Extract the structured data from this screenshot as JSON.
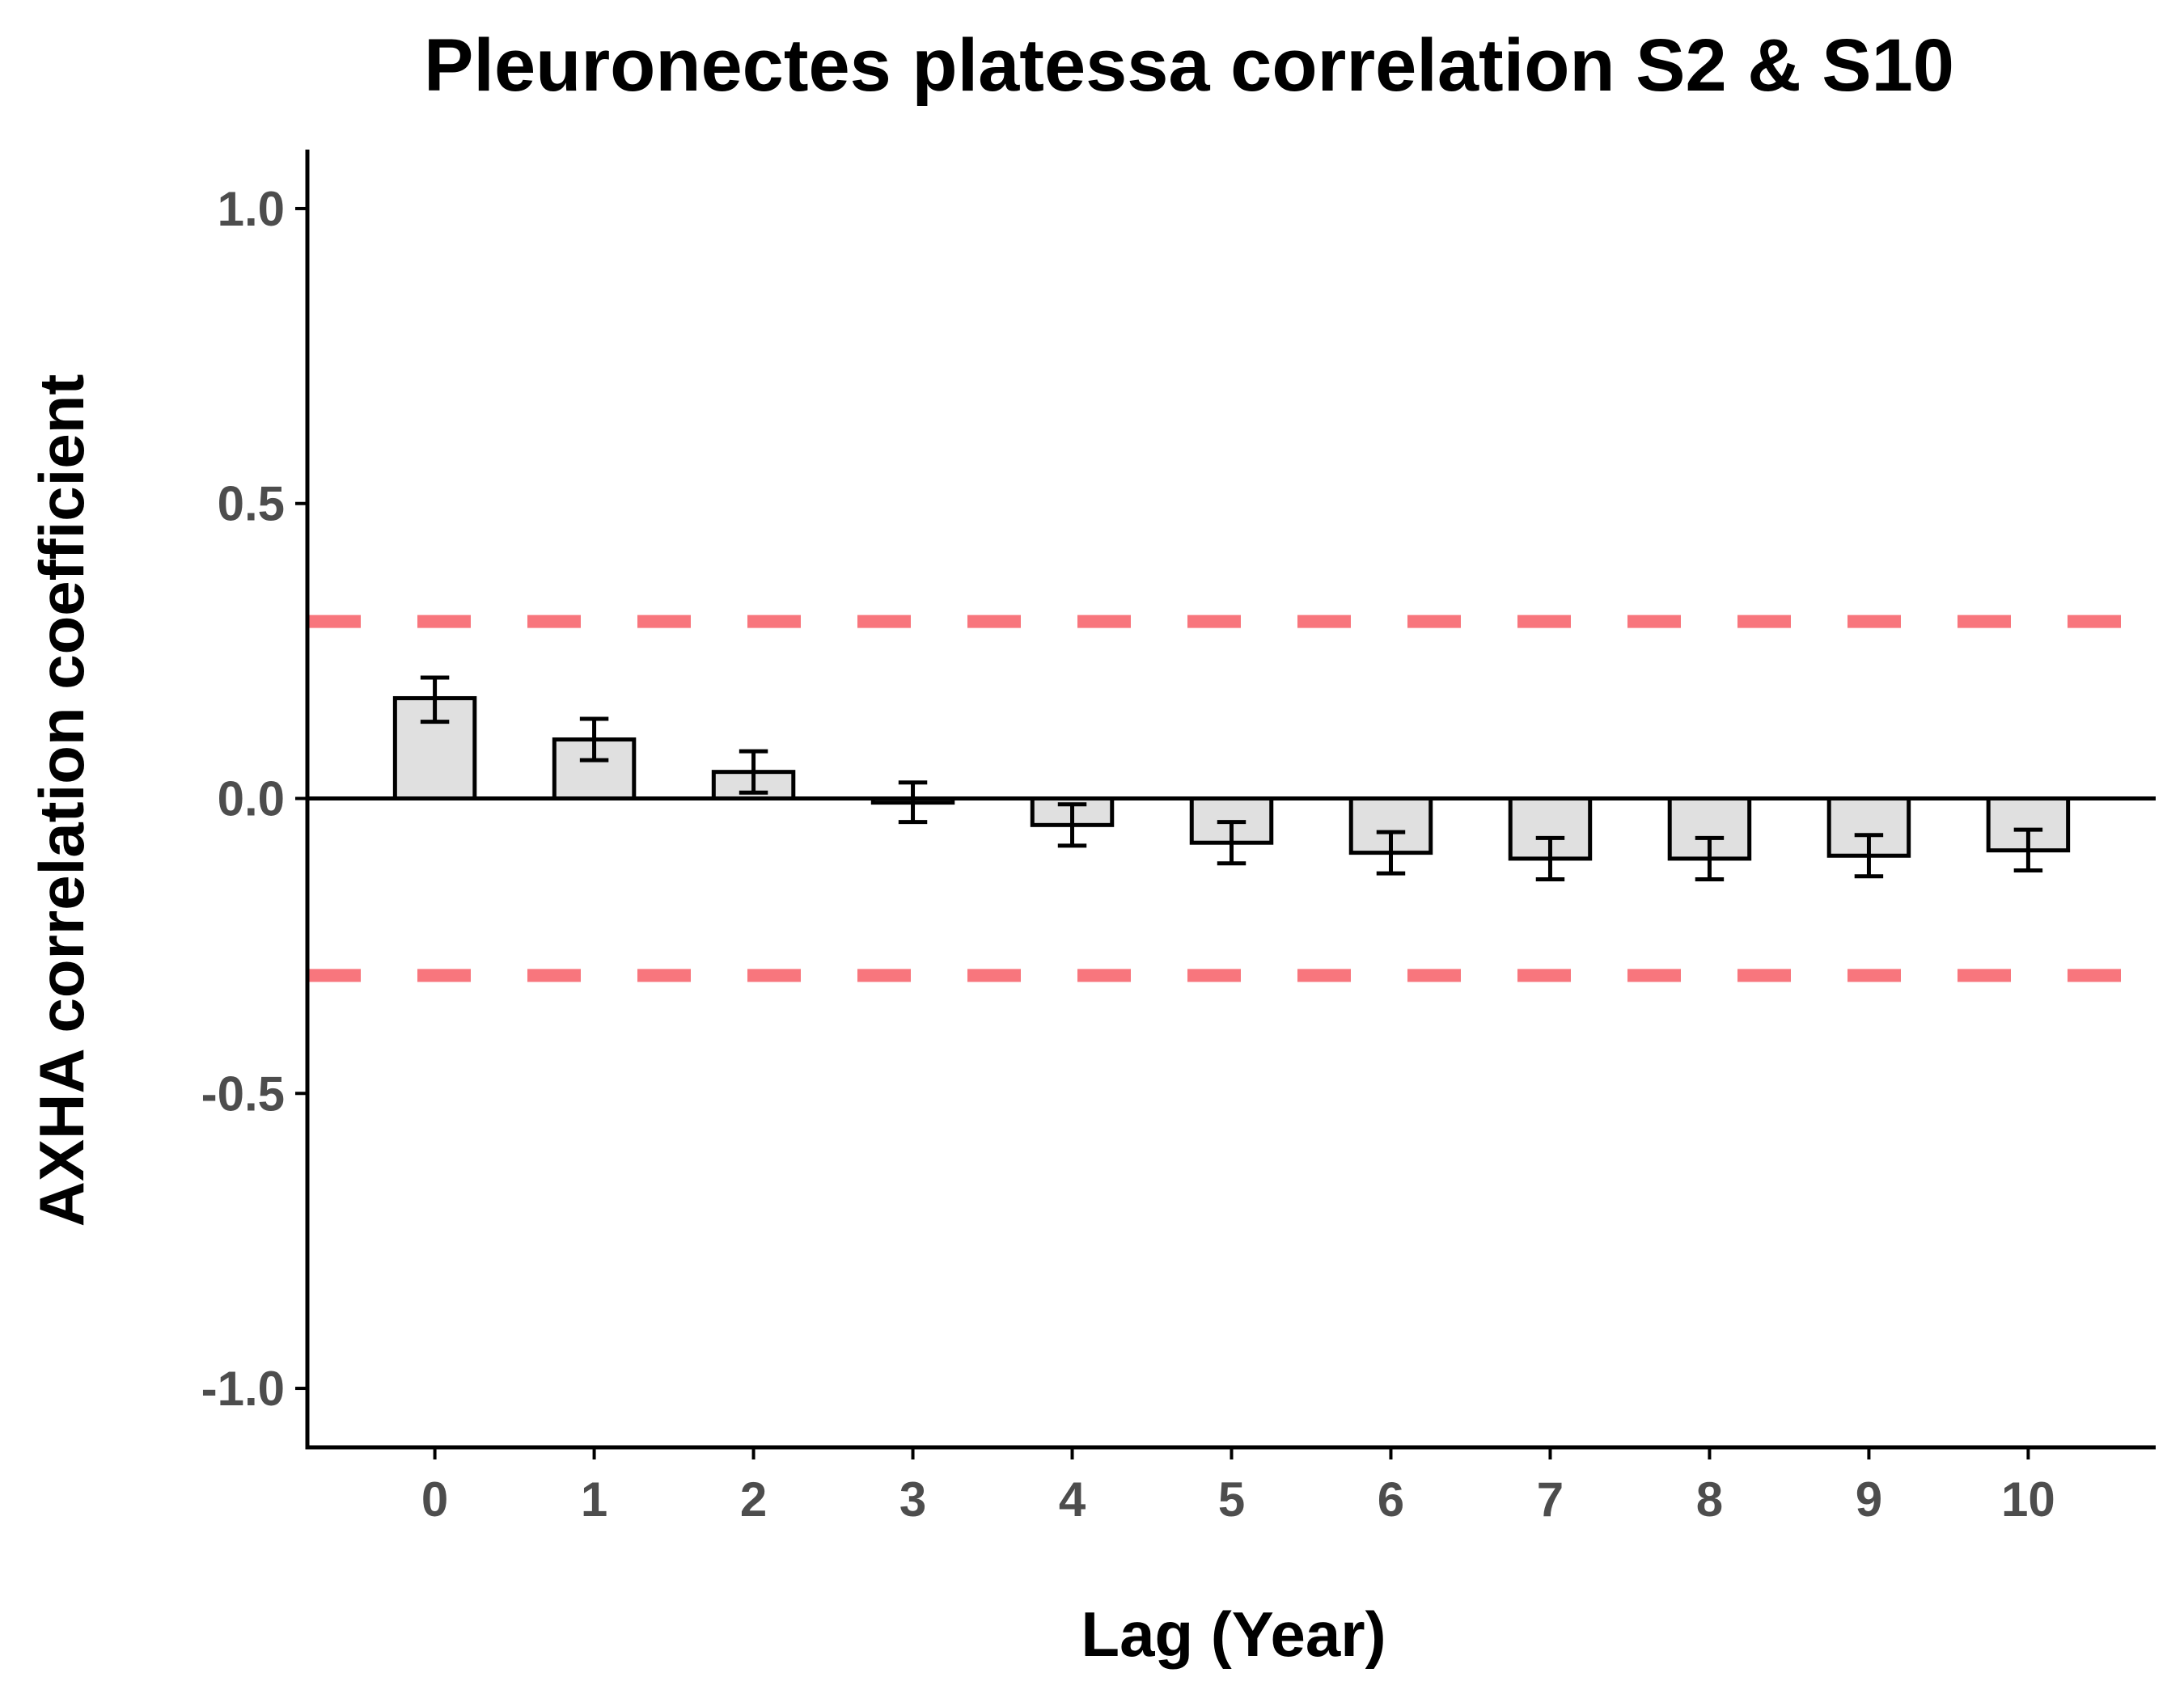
{
  "chart_data": {
    "type": "bar",
    "title": "Pleuronectes platessa correlation S2 & S10",
    "xlabel": "Lag (Year)",
    "ylabel": "AXHA correlation coefficient",
    "categories": [
      "0",
      "1",
      "2",
      "3",
      "4",
      "5",
      "6",
      "7",
      "8",
      "9",
      "10"
    ],
    "values": [
      0.17,
      0.1,
      0.045,
      -0.007,
      -0.045,
      -0.075,
      -0.092,
      -0.102,
      -0.102,
      -0.097,
      -0.088
    ],
    "error_lower": [
      0.13,
      0.065,
      0.01,
      -0.04,
      -0.08,
      -0.11,
      -0.127,
      -0.137,
      -0.137,
      -0.132,
      -0.122
    ],
    "error_upper": [
      0.205,
      0.135,
      0.08,
      0.027,
      -0.01,
      -0.04,
      -0.057,
      -0.067,
      -0.067,
      -0.062,
      -0.053
    ],
    "reference_lines": [
      0.3,
      -0.3
    ],
    "ylim": [
      -1.1,
      1.1
    ],
    "yticks": [
      "1.0",
      "0.5",
      "0.0",
      "-0.5",
      "-1.0"
    ],
    "ytick_values": [
      1.0,
      0.5,
      0.0,
      -0.5,
      -1.0
    ],
    "grid": false,
    "colors": {
      "bar_fill": "#e0e0e0",
      "bar_stroke": "#000000",
      "reference_line": "#f8767d",
      "tick_label": "#4d4d4d"
    }
  }
}
